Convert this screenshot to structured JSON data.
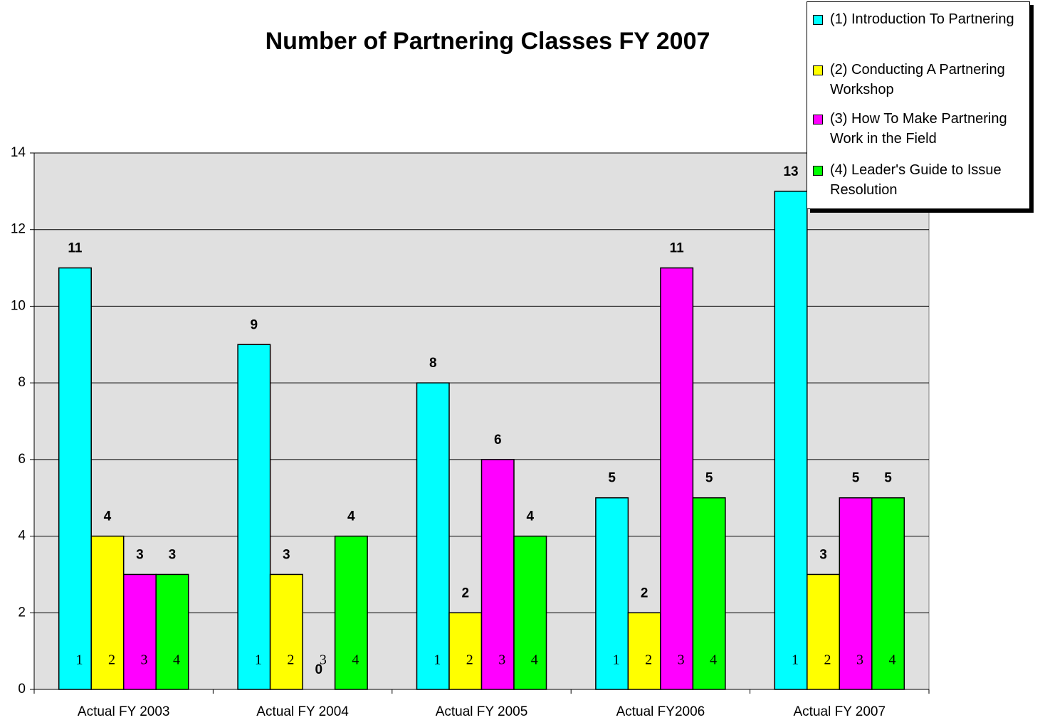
{
  "chart_data": {
    "type": "bar",
    "title": "Number of Partnering Classes FY 2007",
    "categories": [
      "Actual FY 2003",
      "Actual FY 2004",
      "Actual FY 2005",
      "Actual FY2006",
      "Actual FY 2007"
    ],
    "series": [
      {
        "name": "(1) Introduction To Partnering",
        "color": "#00ffff",
        "bar_label": "1",
        "values": [
          11,
          9,
          8,
          5,
          13
        ]
      },
      {
        "name": "(2) Conducting A Partnering Workshop",
        "color": "#ffff00",
        "bar_label": "2",
        "values": [
          4,
          3,
          2,
          2,
          3
        ]
      },
      {
        "name": "(3) How  To Make Partnering Work in the Field",
        "color": "#ff00ff",
        "bar_label": "3",
        "values": [
          3,
          0,
          6,
          11,
          5
        ]
      },
      {
        "name": "(4) Leader's Guide to Issue Resolution",
        "color": "#00ff00",
        "bar_label": "4",
        "values": [
          3,
          4,
          4,
          5,
          5
        ]
      }
    ],
    "ylim": [
      0,
      14
    ],
    "yticks": [
      0,
      2,
      4,
      6,
      8,
      10,
      12,
      14
    ],
    "grid": true,
    "legend": "top-right"
  }
}
